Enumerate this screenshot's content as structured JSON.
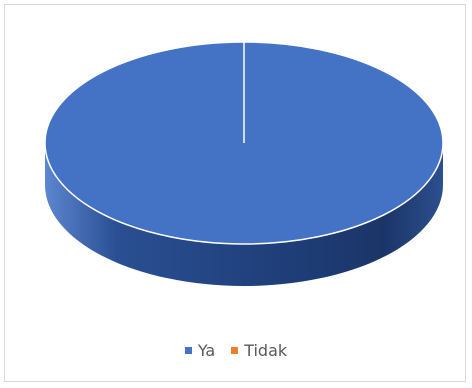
{
  "chart_data": {
    "type": "pie",
    "title": "",
    "categories": [
      "Ya",
      "Tidak"
    ],
    "values": [
      100,
      0
    ],
    "colors": [
      "#4472c4",
      "#ed7d31"
    ],
    "legend_position": "bottom",
    "style": "3d"
  }
}
